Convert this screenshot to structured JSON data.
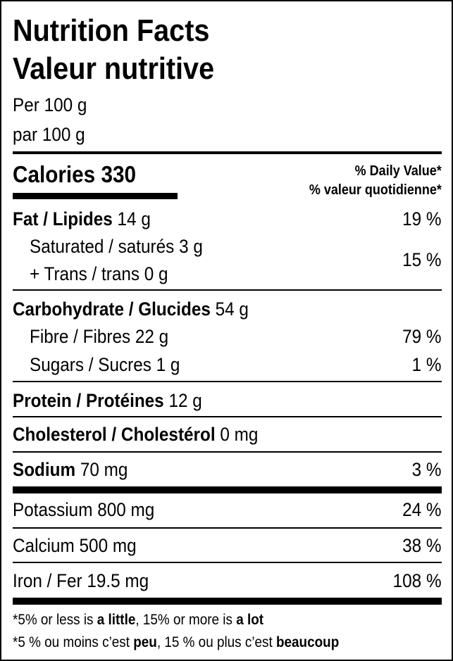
{
  "title_en": "Nutrition Facts",
  "title_fr": "Valeur nutritive",
  "serving_en": "Per 100 g",
  "serving_fr": "par 100 g",
  "calories": {
    "label": "Calories",
    "value": "330"
  },
  "dv_header_en": "% Daily Value*",
  "dv_header_fr": "% valeur quotidienne*",
  "nutrients": {
    "fat": {
      "label": "Fat / Lipides",
      "amount": "14 g",
      "dv": "19 %"
    },
    "saturated": {
      "label": "Saturated / saturés",
      "amount": "3 g"
    },
    "trans": {
      "label": "+ Trans / trans",
      "amount": "0 g"
    },
    "sat_trans_dv": "15 %",
    "carbohydrate": {
      "label": "Carbohydrate / Glucides",
      "amount": "54 g"
    },
    "fibre": {
      "label": "Fibre / Fibres",
      "amount": "22 g",
      "dv": "79 %"
    },
    "sugars": {
      "label": "Sugars / Sucres",
      "amount": "1 g",
      "dv": "1 %"
    },
    "protein": {
      "label": "Protein / Protéines",
      "amount": "12 g"
    },
    "cholesterol": {
      "label": "Cholesterol / Cholestérol",
      "amount": "0 mg"
    },
    "sodium": {
      "label": "Sodium",
      "amount": "70 mg",
      "dv": "3 %"
    },
    "potassium": {
      "label": "Potassium",
      "amount": "800 mg",
      "dv": "24 %"
    },
    "calcium": {
      "label": "Calcium",
      "amount": "500 mg",
      "dv": "38 %"
    },
    "iron": {
      "label": "Iron / Fer",
      "amount": "19.5 mg",
      "dv": "108 %"
    }
  },
  "footnote_en": {
    "a": "*5% or less is ",
    "b": "a little",
    "c": ", 15% or more is ",
    "d": "a lot"
  },
  "footnote_fr": {
    "a": "*5 % ou moins c’est ",
    "b": "peu",
    "c": ", 15 % ou plus c’est ",
    "d": "beaucoup"
  }
}
